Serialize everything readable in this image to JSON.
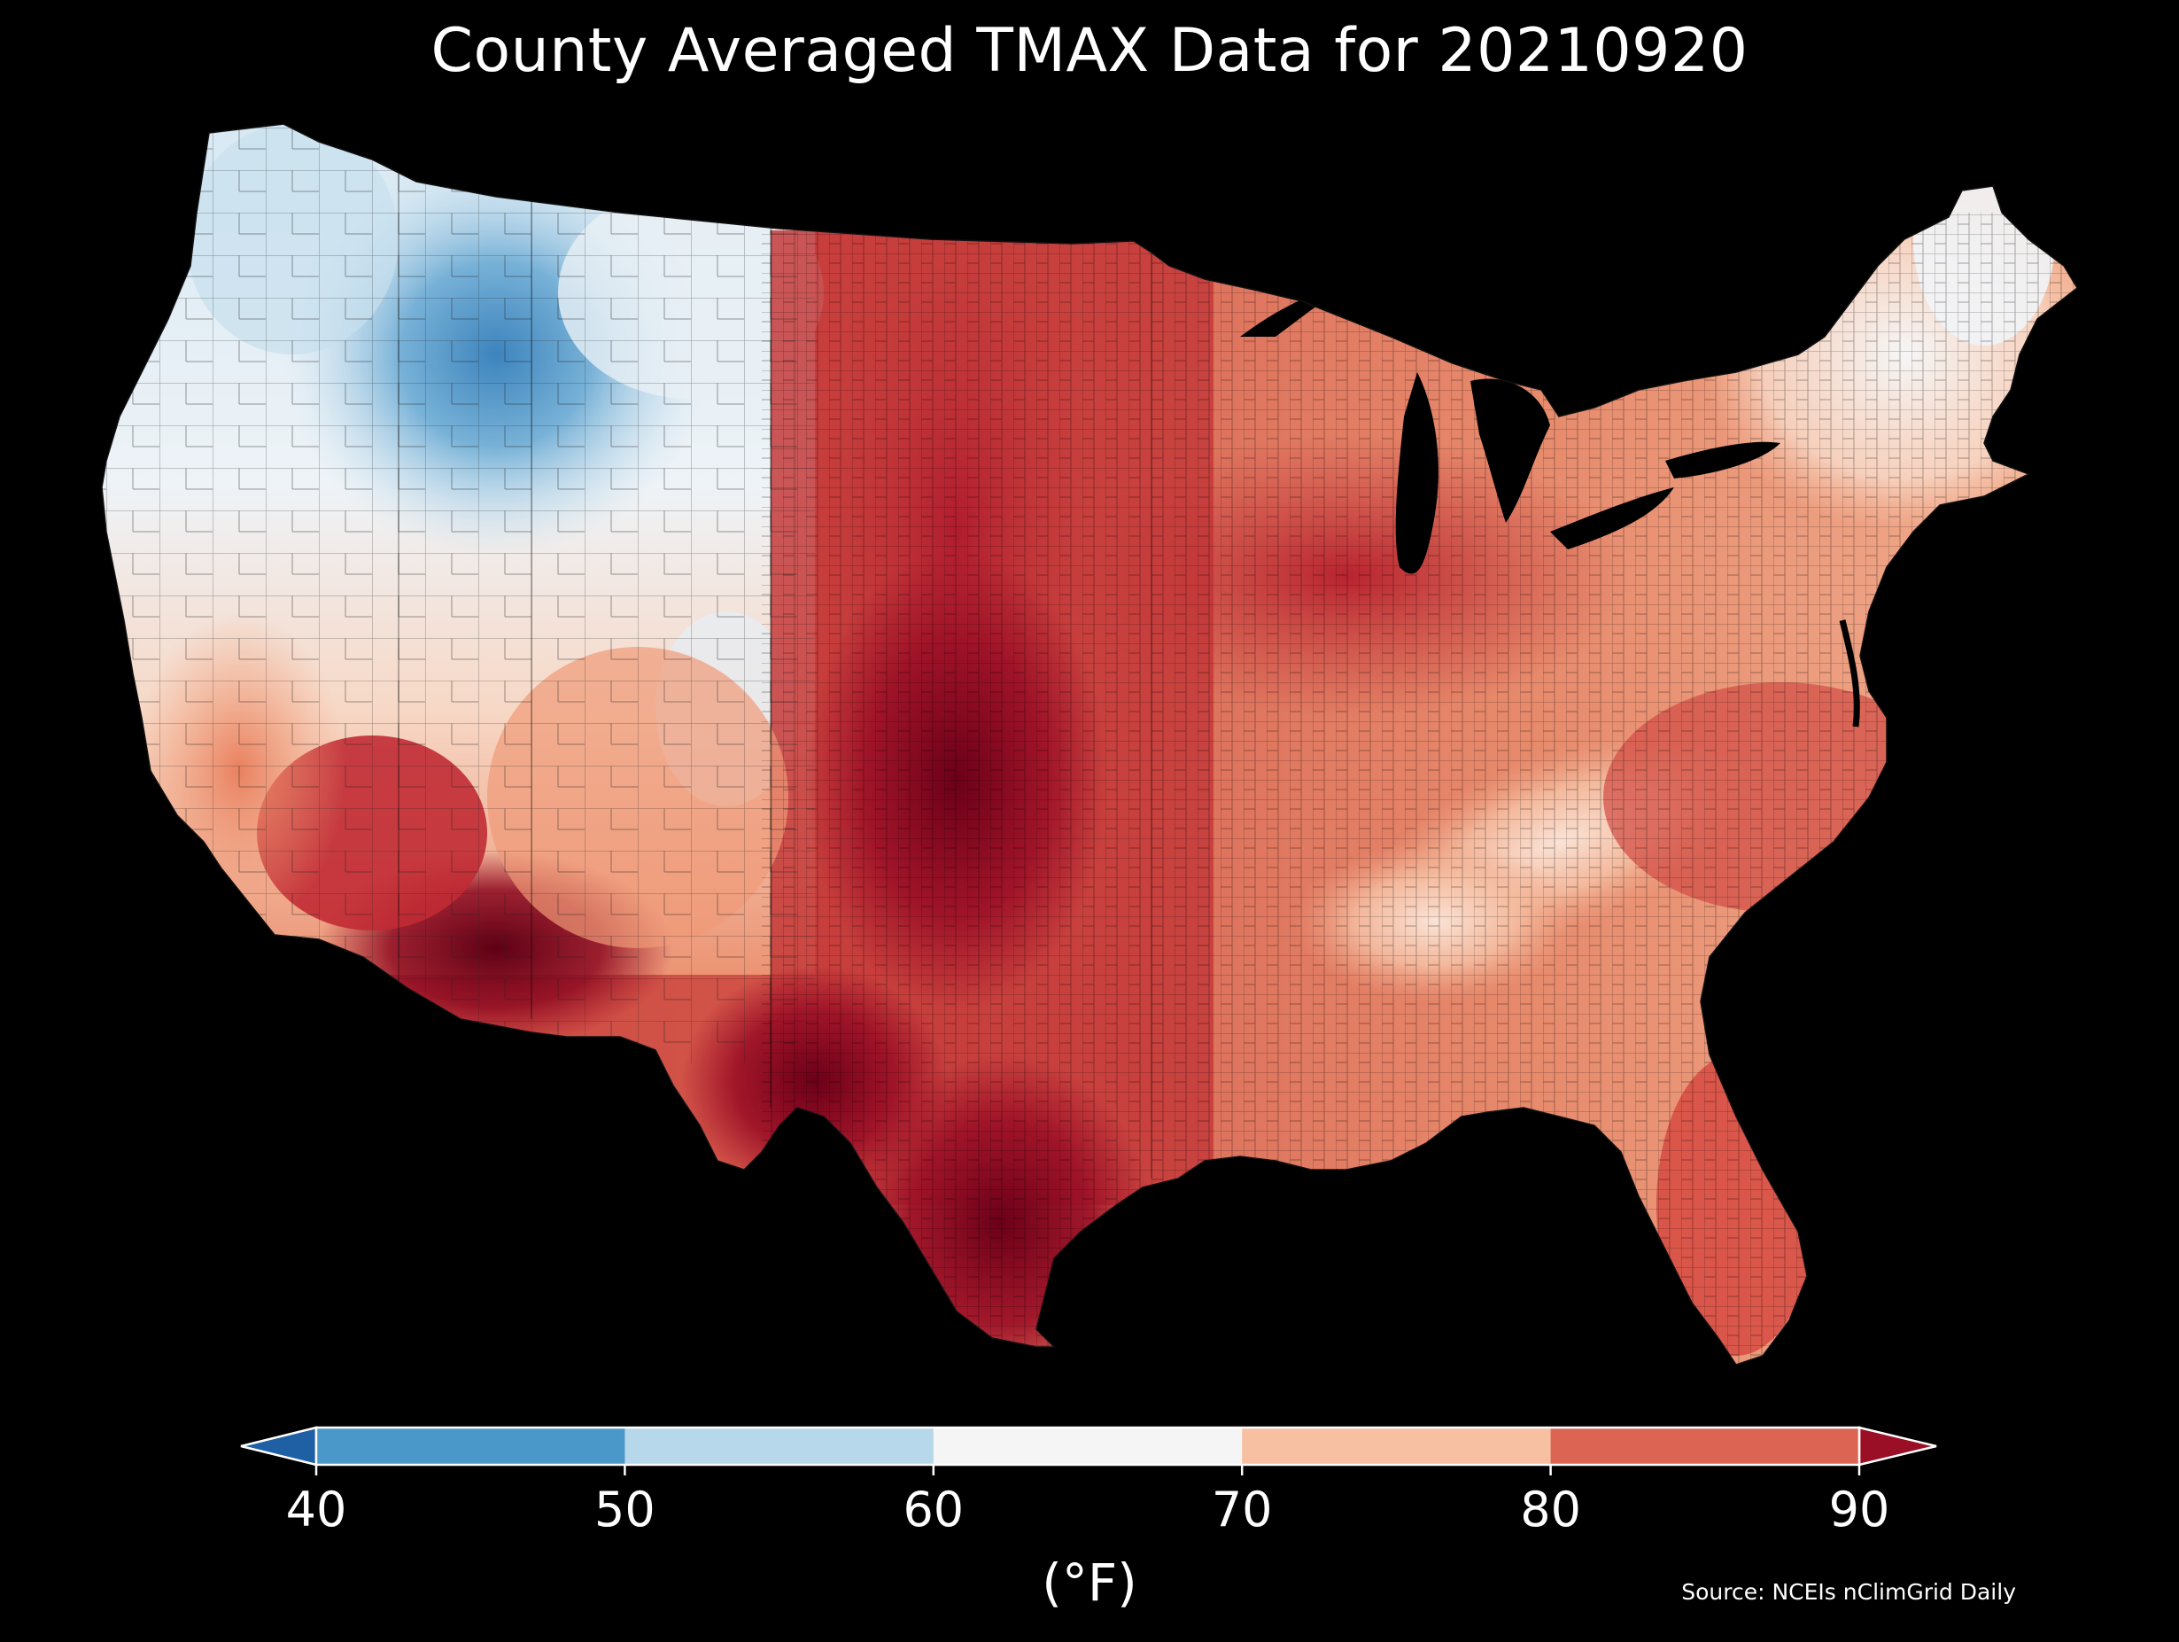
{
  "title": "County Averaged TMAX Data for 20210920",
  "source": "Source: NCEIs nClimGrid Daily",
  "colorbar": {
    "label": "(°F)",
    "ticks": [
      "40",
      "50",
      "60",
      "70",
      "80",
      "90"
    ],
    "bins": [
      {
        "range": "<40",
        "color": "#1f5fa3"
      },
      {
        "range": "40-50",
        "color": "#4a98c9"
      },
      {
        "range": "50-60",
        "color": "#b7d7ea"
      },
      {
        "range": "60-70",
        "color": "#f5f5f5"
      },
      {
        "range": "70-80",
        "color": "#f8c0a3"
      },
      {
        "range": "80-90",
        "color": "#db6552"
      },
      {
        "range": ">90",
        "color": "#9b0f26"
      }
    ],
    "extend": "both"
  },
  "map": {
    "region": "Contiguous United States",
    "boundaries": "counties",
    "background": "#000000",
    "lakes_color": "#000000"
  }
}
